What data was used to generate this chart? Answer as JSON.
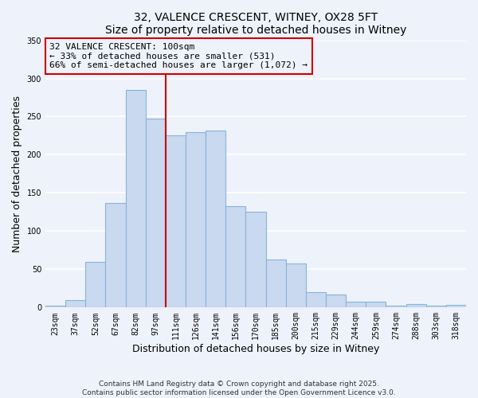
{
  "title": "32, VALENCE CRESCENT, WITNEY, OX28 5FT",
  "subtitle": "Size of property relative to detached houses in Witney",
  "xlabel": "Distribution of detached houses by size in Witney",
  "ylabel": "Number of detached properties",
  "bar_labels": [
    "23sqm",
    "37sqm",
    "52sqm",
    "67sqm",
    "82sqm",
    "97sqm",
    "111sqm",
    "126sqm",
    "141sqm",
    "156sqm",
    "170sqm",
    "185sqm",
    "200sqm",
    "215sqm",
    "229sqm",
    "244sqm",
    "259sqm",
    "274sqm",
    "288sqm",
    "303sqm",
    "318sqm"
  ],
  "bar_heights": [
    2,
    10,
    60,
    137,
    285,
    247,
    225,
    230,
    232,
    133,
    125,
    63,
    58,
    20,
    17,
    8,
    8,
    2,
    5,
    2,
    3
  ],
  "bar_color": "#c8d9f0",
  "bar_edge_color": "#8ab4d8",
  "vline_color": "#cc0000",
  "vline_index": 5,
  "ylim": [
    0,
    350
  ],
  "yticks": [
    0,
    50,
    100,
    150,
    200,
    250,
    300,
    350
  ],
  "annotation_title": "32 VALENCE CRESCENT: 100sqm",
  "annotation_line1": "← 33% of detached houses are smaller (531)",
  "annotation_line2": "66% of semi-detached houses are larger (1,072) →",
  "footer1": "Contains HM Land Registry data © Crown copyright and database right 2025.",
  "footer2": "Contains public sector information licensed under the Open Government Licence v3.0.",
  "background_color": "#eef2fb",
  "grid_color": "#ffffff"
}
